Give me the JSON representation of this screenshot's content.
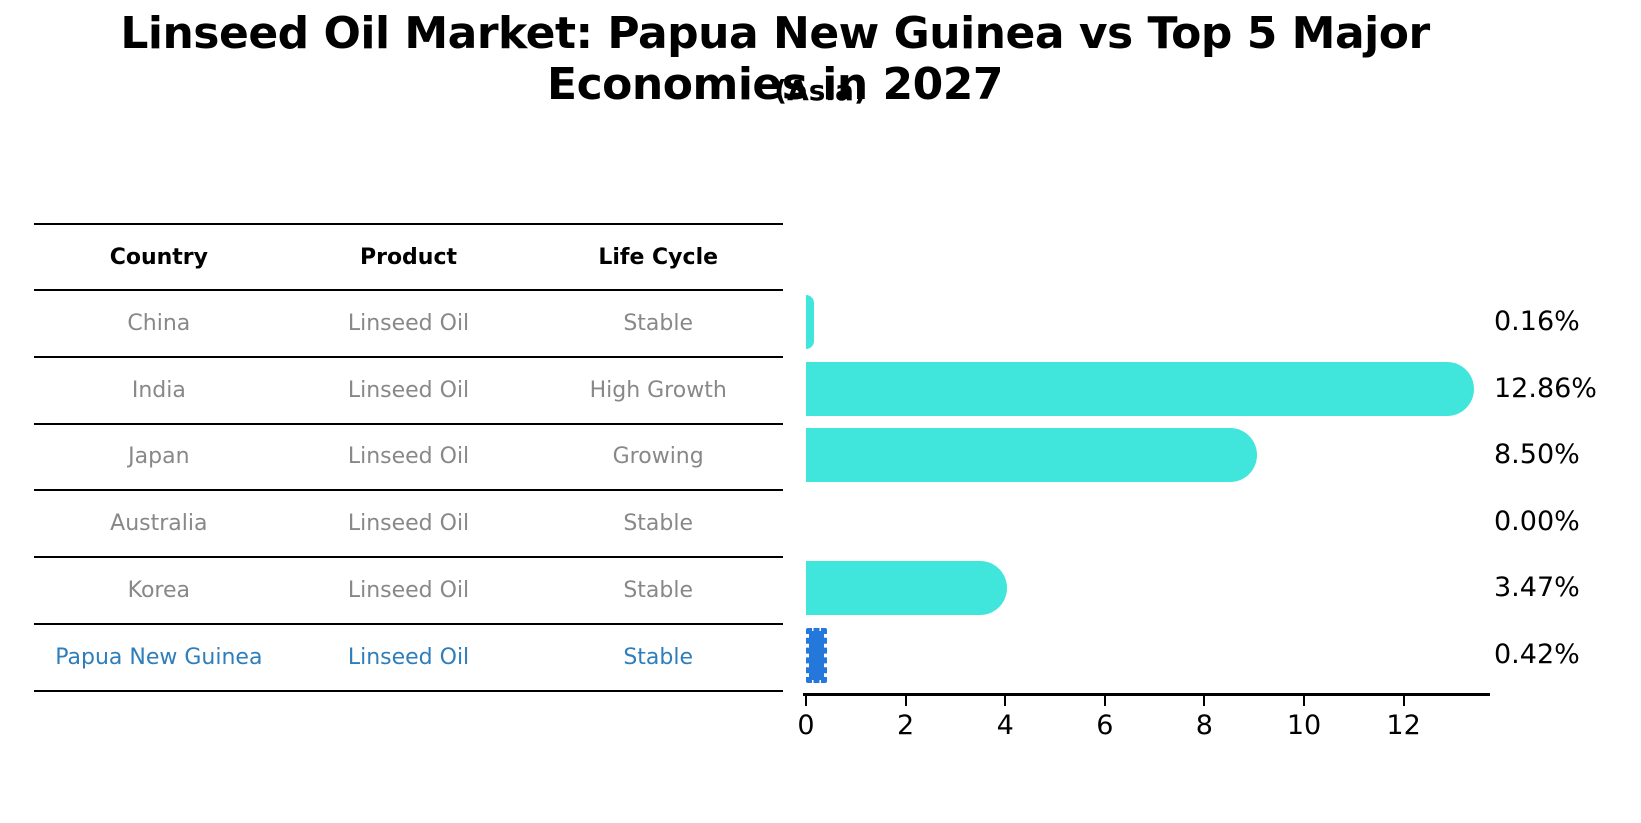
{
  "title": "Linseed Oil Market: Papua New Guinea vs Top 5 Major Economies in 2027",
  "subtitle": "(Asia)",
  "table": {
    "headers": [
      "Country",
      "Product",
      "Life Cycle"
    ],
    "rows": [
      {
        "country": "China",
        "product": "Linseed Oil",
        "life_cycle": "Stable",
        "highlight": false
      },
      {
        "country": "India",
        "product": "Linseed Oil",
        "life_cycle": "High Growth",
        "highlight": false
      },
      {
        "country": "Japan",
        "product": "Linseed Oil",
        "life_cycle": "Growing",
        "highlight": false
      },
      {
        "country": "Australia",
        "product": "Linseed Oil",
        "life_cycle": "Stable",
        "highlight": false
      },
      {
        "country": "Korea",
        "product": "Linseed Oil",
        "life_cycle": "Stable",
        "highlight": false
      },
      {
        "country": "Papua New Guinea",
        "product": "Linseed Oil",
        "life_cycle": "Stable",
        "highlight": true
      }
    ]
  },
  "chart_data": {
    "type": "bar",
    "orientation": "horizontal",
    "title": "Linseed Oil Market: Papua New Guinea vs Top 5 Major Economies in 2027 (Asia)",
    "categories": [
      "China",
      "India",
      "Japan",
      "Australia",
      "Korea",
      "Papua New Guinea"
    ],
    "values": [
      0.16,
      12.86,
      8.5,
      0.0,
      3.47,
      0.42
    ],
    "value_labels": [
      "0.16%",
      "12.86%",
      "8.50%",
      "0.00%",
      "3.47%",
      "0.42%"
    ],
    "x_ticks": [
      0,
      2,
      4,
      6,
      8,
      10,
      12
    ],
    "xlim": [
      0,
      13.7
    ],
    "xlabel": "",
    "ylabel": "",
    "grid": false,
    "legend": "none",
    "bar_color": "#40E5DB",
    "highlight_bar_color": "#2478DB",
    "highlight_text_color": "#2e7ebc",
    "highlight_index": 5
  }
}
